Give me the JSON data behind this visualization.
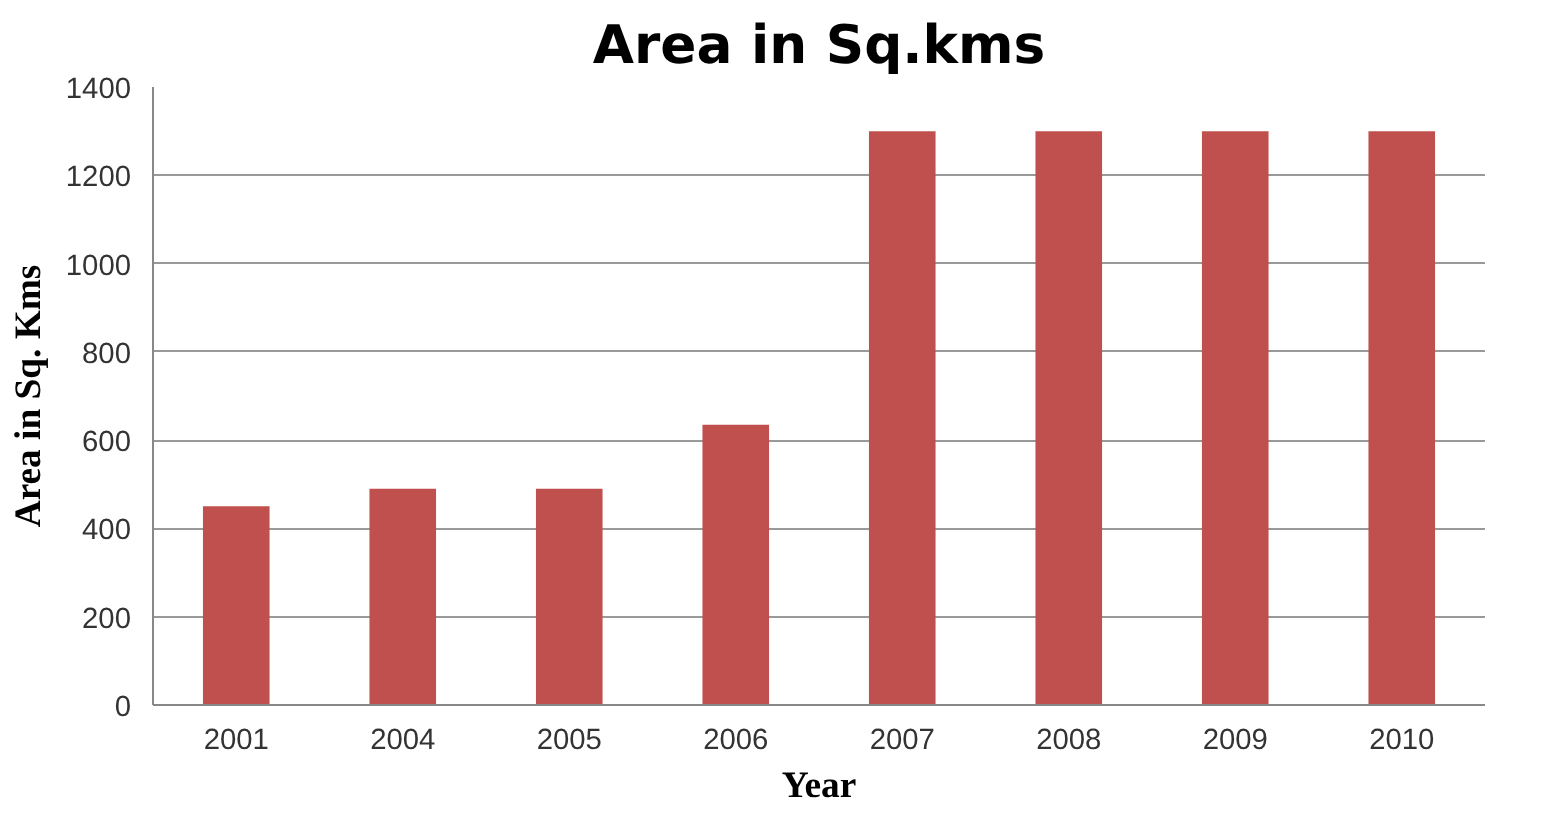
{
  "chart_data": {
    "type": "bar",
    "title": "Area in Sq.kms",
    "xlabel": "Year",
    "ylabel": "Area in Sq. Kms",
    "categories": [
      "2001",
      "2004",
      "2005",
      "2006",
      "2007",
      "2008",
      "2009",
      "2010"
    ],
    "values": [
      450,
      490,
      490,
      635,
      1300,
      1300,
      1300,
      1300
    ],
    "color": "#c0504d",
    "ylim": [
      0,
      1400
    ],
    "yticks": [
      0,
      200,
      400,
      600,
      800,
      1000,
      1200,
      1400
    ],
    "grid": "y"
  }
}
